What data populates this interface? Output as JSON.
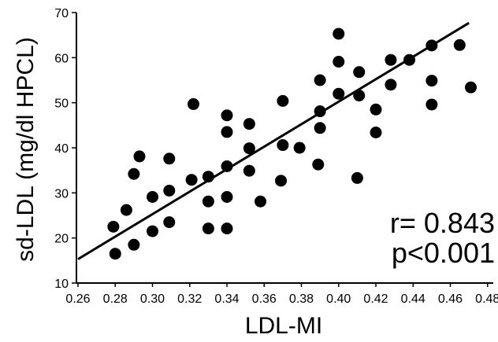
{
  "chart_data": {
    "type": "scatter",
    "title": "",
    "xlabel": "LDL-MI",
    "ylabel": "sd-LDL (mg/dl HPCL)",
    "xlim": [
      0.26,
      0.49
    ],
    "ylim": [
      10,
      70
    ],
    "x_ticks": [
      "0.26",
      "0.28",
      "0.30",
      "0.32",
      "0.34",
      "0.36",
      "0.38",
      "0.40",
      "0.42",
      "0.44",
      "0.46",
      "0.48"
    ],
    "y_ticks": [
      "10",
      "20",
      "30",
      "40",
      "50",
      "60",
      "70"
    ],
    "grid": false,
    "annotations": [
      "r= 0.843",
      "p<0.001"
    ],
    "trendline": {
      "x": [
        0.26,
        0.47
      ],
      "y": [
        15.3,
        67.7
      ]
    },
    "points": [
      {
        "x": 0.28,
        "y": 16.5
      },
      {
        "x": 0.279,
        "y": 22.5
      },
      {
        "x": 0.286,
        "y": 26.2
      },
      {
        "x": 0.29,
        "y": 18.5
      },
      {
        "x": 0.29,
        "y": 34.2
      },
      {
        "x": 0.293,
        "y": 38.1
      },
      {
        "x": 0.3,
        "y": 21.5
      },
      {
        "x": 0.3,
        "y": 29.1
      },
      {
        "x": 0.309,
        "y": 23.5
      },
      {
        "x": 0.309,
        "y": 30.5
      },
      {
        "x": 0.309,
        "y": 37.6
      },
      {
        "x": 0.321,
        "y": 32.9
      },
      {
        "x": 0.322,
        "y": 49.7
      },
      {
        "x": 0.33,
        "y": 28.1
      },
      {
        "x": 0.33,
        "y": 22.1
      },
      {
        "x": 0.33,
        "y": 33.6
      },
      {
        "x": 0.34,
        "y": 22.1
      },
      {
        "x": 0.34,
        "y": 29.1
      },
      {
        "x": 0.34,
        "y": 35.9
      },
      {
        "x": 0.34,
        "y": 43.5
      },
      {
        "x": 0.34,
        "y": 47.2
      },
      {
        "x": 0.352,
        "y": 45.3
      },
      {
        "x": 0.352,
        "y": 39.9
      },
      {
        "x": 0.352,
        "y": 34.9
      },
      {
        "x": 0.358,
        "y": 28.1
      },
      {
        "x": 0.369,
        "y": 32.7
      },
      {
        "x": 0.37,
        "y": 40.6
      },
      {
        "x": 0.37,
        "y": 50.4
      },
      {
        "x": 0.379,
        "y": 40.0
      },
      {
        "x": 0.389,
        "y": 36.3
      },
      {
        "x": 0.39,
        "y": 44.4
      },
      {
        "x": 0.39,
        "y": 48.1
      },
      {
        "x": 0.39,
        "y": 55.0
      },
      {
        "x": 0.4,
        "y": 52.0
      },
      {
        "x": 0.4,
        "y": 59.1
      },
      {
        "x": 0.4,
        "y": 65.3
      },
      {
        "x": 0.41,
        "y": 33.3
      },
      {
        "x": 0.411,
        "y": 51.6
      },
      {
        "x": 0.411,
        "y": 56.8
      },
      {
        "x": 0.42,
        "y": 43.4
      },
      {
        "x": 0.42,
        "y": 48.5
      },
      {
        "x": 0.428,
        "y": 54.0
      },
      {
        "x": 0.428,
        "y": 59.5
      },
      {
        "x": 0.438,
        "y": 59.5
      },
      {
        "x": 0.45,
        "y": 49.6
      },
      {
        "x": 0.45,
        "y": 54.9
      },
      {
        "x": 0.45,
        "y": 62.7
      },
      {
        "x": 0.465,
        "y": 62.8
      },
      {
        "x": 0.471,
        "y": 53.4
      }
    ]
  }
}
